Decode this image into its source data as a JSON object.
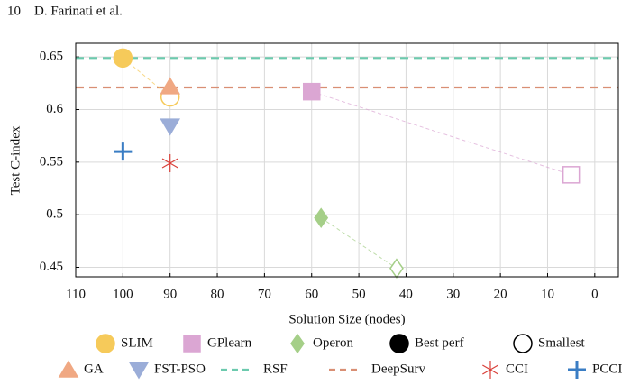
{
  "header": {
    "page": "10",
    "authors": "D. Farinati et al."
  },
  "chart_data": {
    "type": "scatter",
    "xlabel": "Solution Size (nodes)",
    "ylabel": "Test C-index",
    "xlim": [
      110,
      -5
    ],
    "ylim": [
      0.441,
      0.663
    ],
    "xticks": [
      110,
      100,
      90,
      80,
      70,
      60,
      50,
      40,
      30,
      20,
      10,
      0
    ],
    "yticks": [
      0.45,
      0.5,
      0.55,
      0.6,
      0.65
    ],
    "grid": true,
    "marker_styles": [
      {
        "name": "Best perf",
        "filled": true
      },
      {
        "name": "Smallest",
        "filled": false
      }
    ],
    "series": [
      {
        "name": "SLIM",
        "color": "#f6ca5a",
        "marker": "circle",
        "x": [
          100,
          90
        ],
        "values": [
          0.649,
          0.612
        ]
      },
      {
        "name": "GPlearn",
        "color": "#dba6d3",
        "marker": "square",
        "x": [
          60,
          5
        ],
        "values": [
          0.617,
          0.538
        ]
      },
      {
        "name": "Operon",
        "color": "#a5cf88",
        "marker": "diamond",
        "x": [
          58,
          42
        ],
        "values": [
          0.497,
          0.449
        ]
      },
      {
        "name": "GA",
        "color": "#f0a883",
        "marker": "triangle",
        "x": [
          90
        ],
        "values": [
          0.622
        ]
      },
      {
        "name": "FST-PSO",
        "color": "#9badd8",
        "marker": "triangle-down",
        "x": [
          90
        ],
        "values": [
          0.584
        ]
      },
      {
        "name": "RSF",
        "color": "#6ccaae",
        "marker": "hline",
        "values": [
          0.649
        ]
      },
      {
        "name": "DeepSurv",
        "color": "#d98f74",
        "marker": "hline",
        "values": [
          0.621
        ]
      },
      {
        "name": "CCI",
        "color": "#d9403a",
        "marker": "asterisk",
        "x": [
          90
        ],
        "values": [
          0.549
        ]
      },
      {
        "name": "PCCI",
        "color": "#3a7dc4",
        "marker": "plus",
        "x": [
          100
        ],
        "values": [
          0.56
        ]
      }
    ]
  }
}
